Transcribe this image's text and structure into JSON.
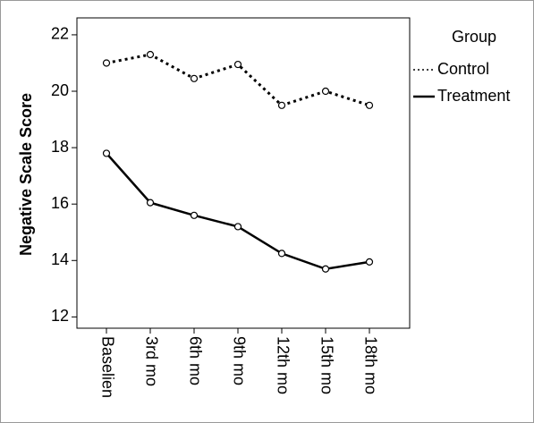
{
  "chart_data": {
    "type": "line",
    "y_label": "Negative Scale Score",
    "legend_title": "Group",
    "categories": [
      "Baselien",
      "3rd mo",
      "6th mo",
      "9th mo",
      "12th mo",
      "15th mo",
      "18th mo"
    ],
    "series": [
      {
        "name": "Control",
        "color": "#000000",
        "dashed": true,
        "values": [
          21.0,
          21.3,
          20.45,
          20.95,
          19.5,
          20.0,
          19.5
        ]
      },
      {
        "name": "Treatment",
        "color": "#000000",
        "dashed": false,
        "values": [
          17.8,
          16.05,
          15.6,
          15.2,
          14.25,
          13.7,
          13.95
        ]
      }
    ],
    "ylim": [
      11.6,
      22.6
    ],
    "yticks": [
      12,
      14,
      16,
      18,
      20,
      22
    ],
    "legend_position": "right"
  }
}
